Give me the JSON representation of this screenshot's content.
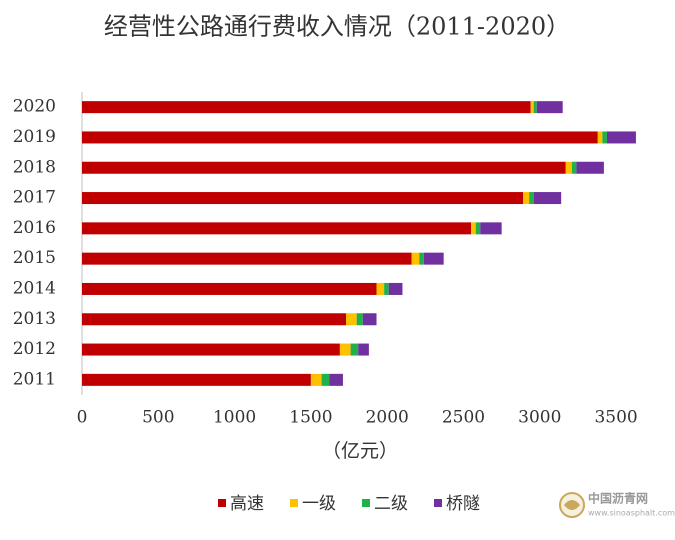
{
  "chart_data": {
    "type": "stacked-bar-horizontal",
    "title": "经营性公路通行费收入情况（2011-2020）",
    "x_label": "（亿元）",
    "categories": [
      "2020",
      "2019",
      "2018",
      "2017",
      "2016",
      "2015",
      "2014",
      "2013",
      "2012",
      "2011"
    ],
    "series": [
      {
        "name": "高速",
        "color": "#c00000",
        "values": [
          2940,
          3380,
          3170,
          2890,
          2550,
          2160,
          1930,
          1730,
          1690,
          1500
        ]
      },
      {
        "name": "一级",
        "color": "#ffc000",
        "values": [
          20,
          30,
          40,
          40,
          30,
          50,
          50,
          70,
          70,
          70
        ]
      },
      {
        "name": "二级",
        "color": "#21b14b",
        "values": [
          20,
          30,
          30,
          30,
          30,
          30,
          30,
          40,
          50,
          50
        ]
      },
      {
        "name": "桥隧",
        "color": "#7030a0",
        "values": [
          170,
          190,
          180,
          180,
          140,
          130,
          90,
          90,
          70,
          90
        ]
      }
    ],
    "xlim": [
      0,
      3700
    ],
    "xticks": [
      0,
      500,
      1000,
      1500,
      2000,
      2500,
      3000,
      3500
    ],
    "grid": false,
    "legend": "bottom",
    "watermark": {
      "name": "中国沥青网",
      "url": "www.sinoasphalt.com"
    }
  }
}
